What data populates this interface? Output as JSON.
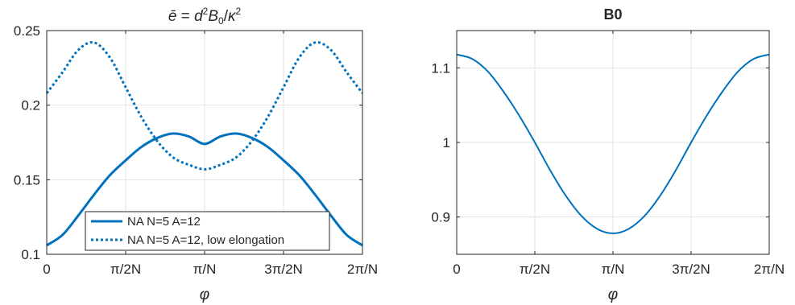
{
  "chart_data": [
    {
      "type": "line",
      "title_parts": {
        "lhs": "ē",
        "eq": " = ",
        "d": "d",
        "two": "2",
        "B": "B",
        "zero": "0",
        "slash": "/",
        "kappa": "κ",
        "two_b": "2"
      },
      "xlabel": "φ",
      "ylabel": "",
      "xlim": [
        0,
        1.2566
      ],
      "ylim": [
        0.1,
        0.25
      ],
      "xticks": [
        0,
        0.31416,
        0.62832,
        0.94248,
        1.25664
      ],
      "xticklabels": [
        "0",
        "π/2N",
        "π/N",
        "3π/2N",
        "2π/N"
      ],
      "yticks": [
        0.1,
        0.15,
        0.2,
        0.25
      ],
      "yticklabels": [
        "0.1",
        "0.15",
        "0.2",
        "0.25"
      ],
      "grid": true,
      "legend": "bottom-center",
      "series": [
        {
          "name": "NA N=5 A=12",
          "style": "solid",
          "color": "#0072BD",
          "x": [
            0,
            0.0628,
            0.1257,
            0.1885,
            0.2513,
            0.3142,
            0.377,
            0.4398,
            0.5027,
            0.5655,
            0.6283,
            0.6911,
            0.754,
            0.8168,
            0.8796,
            0.9425,
            1.0053,
            1.0681,
            1.131,
            1.1938,
            1.2566
          ],
          "y": [
            0.106,
            0.113,
            0.126,
            0.14,
            0.153,
            0.163,
            0.172,
            0.178,
            0.181,
            0.179,
            0.174,
            0.179,
            0.181,
            0.178,
            0.172,
            0.163,
            0.153,
            0.14,
            0.126,
            0.113,
            0.106
          ]
        },
        {
          "name": "NA N=5 A=12, low elongation",
          "style": "dotted",
          "color": "#0072BD",
          "x": [
            0,
            0.0628,
            0.1257,
            0.1885,
            0.2513,
            0.3142,
            0.377,
            0.4398,
            0.5027,
            0.5655,
            0.6283,
            0.6911,
            0.754,
            0.8168,
            0.8796,
            0.9425,
            1.0053,
            1.0681,
            1.131,
            1.1938,
            1.2566
          ],
          "y": [
            0.208,
            0.222,
            0.237,
            0.242,
            0.232,
            0.212,
            0.192,
            0.176,
            0.165,
            0.16,
            0.157,
            0.16,
            0.165,
            0.176,
            0.192,
            0.212,
            0.232,
            0.242,
            0.237,
            0.222,
            0.208
          ]
        }
      ]
    },
    {
      "type": "line",
      "title": "B0",
      "xlabel": "φ",
      "ylabel": "",
      "xlim": [
        0,
        1.2566
      ],
      "ylim": [
        0.85,
        1.15
      ],
      "xticks": [
        0,
        0.31416,
        0.62832,
        0.94248,
        1.25664
      ],
      "xticklabels": [
        "0",
        "π/2N",
        "π/N",
        "3π/2N",
        "2π/N"
      ],
      "yticks": [
        0.9,
        1.0,
        1.1
      ],
      "yticklabels": [
        "0.9",
        "1",
        "1.1"
      ],
      "grid": true,
      "series": [
        {
          "style": "solid",
          "color": "#0072BD",
          "x": [
            0,
            0.0628,
            0.1257,
            0.1885,
            0.2513,
            0.3142,
            0.377,
            0.4398,
            0.5027,
            0.5655,
            0.6283,
            0.6911,
            0.754,
            0.8168,
            0.8796,
            0.9425,
            1.0053,
            1.0681,
            1.131,
            1.1938,
            1.2566
          ],
          "y": [
            1.118,
            1.112,
            1.095,
            1.068,
            1.036,
            1.0,
            0.962,
            0.928,
            0.901,
            0.884,
            0.878,
            0.884,
            0.901,
            0.928,
            0.962,
            1.0,
            1.036,
            1.068,
            1.095,
            1.112,
            1.118
          ]
        }
      ]
    }
  ]
}
